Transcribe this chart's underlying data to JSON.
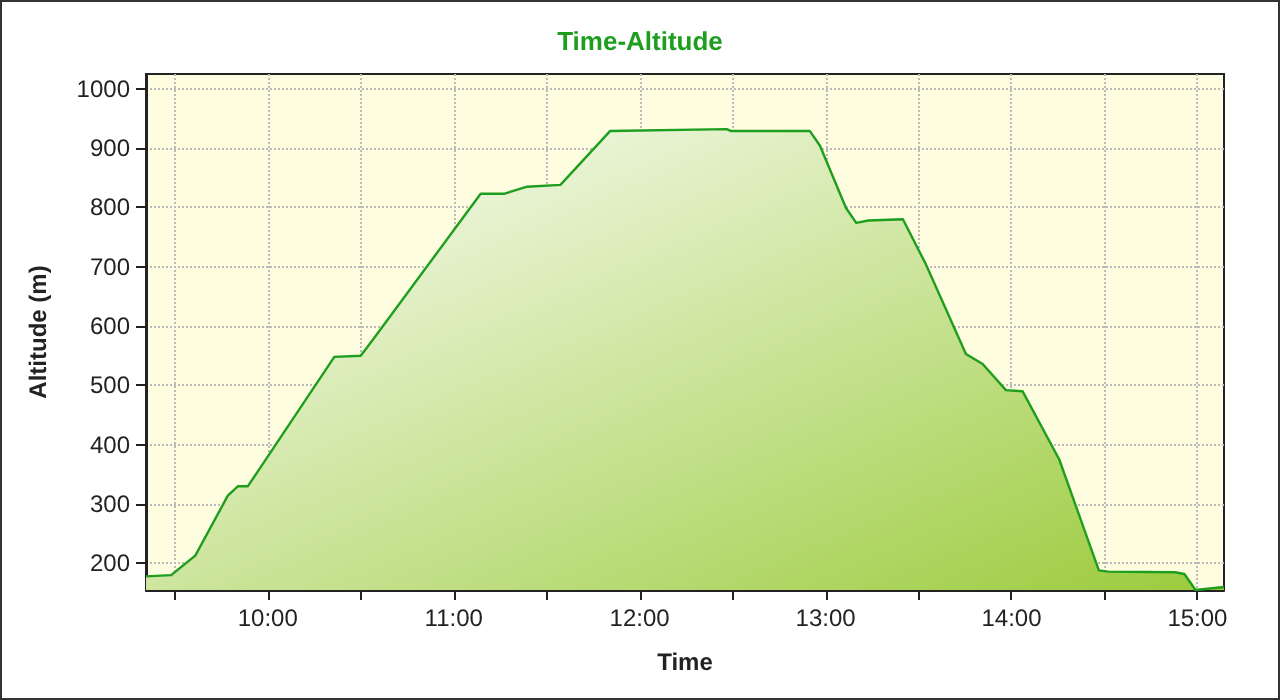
{
  "chart_data": {
    "type": "area",
    "title": "Time-Altitude",
    "xlabel": "Time",
    "ylabel": "Altitude (m)",
    "x": [
      9.345,
      9.48,
      9.61,
      9.785,
      9.84,
      9.893,
      10.358,
      10.5,
      10.572,
      11.145,
      11.27,
      11.395,
      11.574,
      11.842,
      12.468,
      12.49,
      12.915,
      12.97,
      13.11,
      13.165,
      13.23,
      13.416,
      13.54,
      13.755,
      13.845,
      13.97,
      14.06,
      14.257,
      14.47,
      14.52,
      14.88,
      14.93,
      14.99,
      15.143
    ],
    "series": [
      {
        "color": "#1e9e1e",
        "values": [
          178,
          180,
          213,
          314,
          330,
          330,
          548,
          550,
          580,
          823,
          823,
          835,
          838,
          929,
          932,
          929,
          929,
          904,
          799,
          774,
          778,
          780,
          704,
          553,
          536,
          492,
          490,
          375,
          188,
          186,
          185,
          182,
          155,
          160
        ]
      }
    ],
    "xlim": [
      9.345,
      15.143
    ],
    "xticks": [
      {
        "value": 9.5,
        "label": null
      },
      {
        "value": 10,
        "label": "10:00"
      },
      {
        "value": 10.5,
        "label": null
      },
      {
        "value": 11,
        "label": "11:00"
      },
      {
        "value": 11.5,
        "label": null
      },
      {
        "value": 12,
        "label": "12:00"
      },
      {
        "value": 12.5,
        "label": null
      },
      {
        "value": 13,
        "label": "13:00"
      },
      {
        "value": 13.5,
        "label": null
      },
      {
        "value": 14,
        "label": "14:00"
      },
      {
        "value": 14.5,
        "label": null
      },
      {
        "value": 15,
        "label": "15:00"
      }
    ],
    "ylim": [
      155,
      1025
    ],
    "yticks": [
      200,
      300,
      400,
      500,
      600,
      700,
      800,
      900,
      1000
    ],
    "grid": true,
    "marker": "none",
    "line_style": "solid"
  }
}
